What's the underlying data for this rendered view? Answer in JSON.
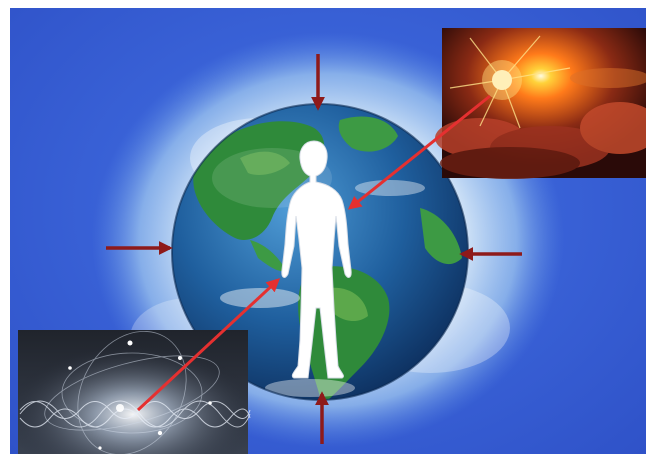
{
  "scene": {
    "colors": {
      "background_blue": "#3a63d8",
      "halo": "#d9ecf7",
      "ocean": "#1f5f9e",
      "land": "#2f8a3a",
      "figure": "#ffffff",
      "arrow_dark_red": "#8e1a1a",
      "arrow_red": "#e53030",
      "sunset_orange": "#ff7a1a"
    },
    "elements": [
      "globe",
      "human-silhouette",
      "sunset-photo",
      "wave-particle-image",
      "inward-arrows",
      "rays-to-figure"
    ]
  }
}
